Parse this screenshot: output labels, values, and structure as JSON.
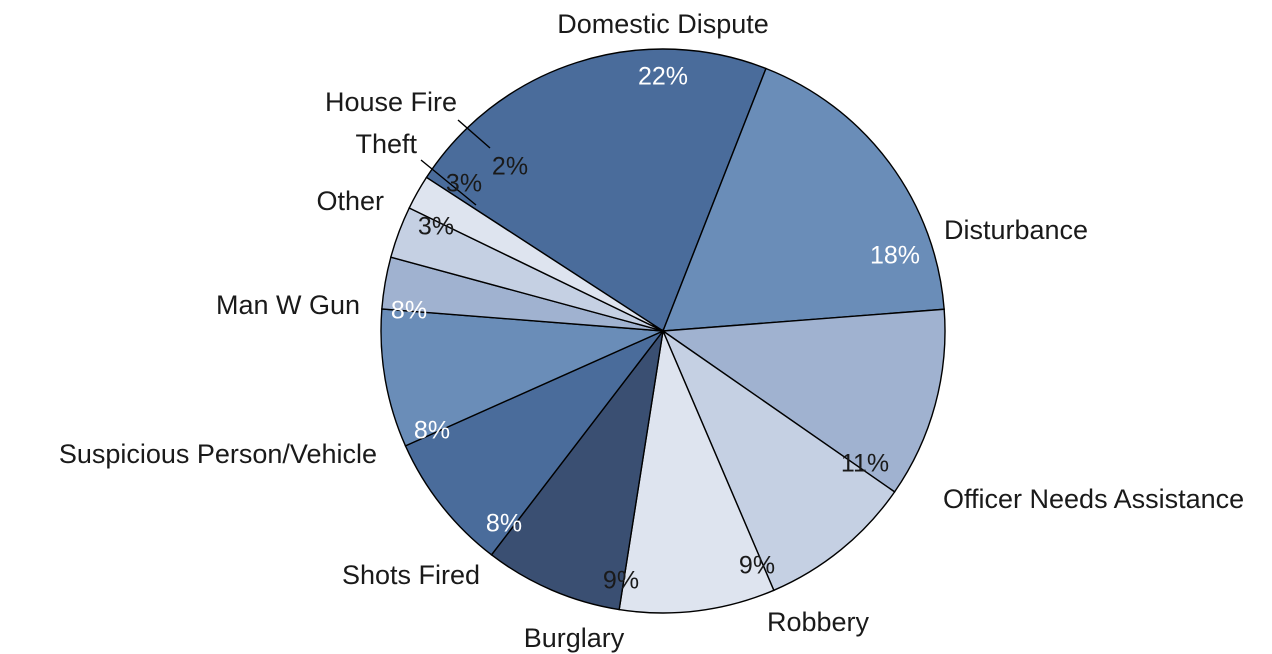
{
  "chart_data": {
    "type": "pie",
    "title": "",
    "legend": "none",
    "slices": [
      {
        "label": "Domestic Dispute",
        "value": 22,
        "value_label": "22%",
        "color": "#4A6C9B"
      },
      {
        "label": "Disturbance",
        "value": 18,
        "value_label": "18%",
        "color": "#6A8DB8"
      },
      {
        "label": "Officer Needs Assistance",
        "value": 11,
        "value_label": "11%",
        "color": "#A0B2D0"
      },
      {
        "label": "Robbery",
        "value": 9,
        "value_label": "9%",
        "color": "#C5D0E3"
      },
      {
        "label": "Burglary",
        "value": 9,
        "value_label": "9%",
        "color": "#DEE4EF"
      },
      {
        "label": "Shots Fired",
        "value": 8,
        "value_label": "8%",
        "color": "#3A4F72"
      },
      {
        "label": "Suspicious Person/Vehicle",
        "value": 8,
        "value_label": "8%",
        "color": "#4A6C9B"
      },
      {
        "label": "Man W Gun",
        "value": 8,
        "value_label": "8%",
        "color": "#6A8DB8"
      },
      {
        "label": "Other",
        "value": 3,
        "value_label": "3%",
        "color": "#A0B2D0"
      },
      {
        "label": "Theft",
        "value": 3,
        "value_label": "3%",
        "color": "#C5D0E3"
      },
      {
        "label": "House Fire",
        "value": 2,
        "value_label": "2%",
        "color": "#DEE4EF"
      }
    ]
  }
}
